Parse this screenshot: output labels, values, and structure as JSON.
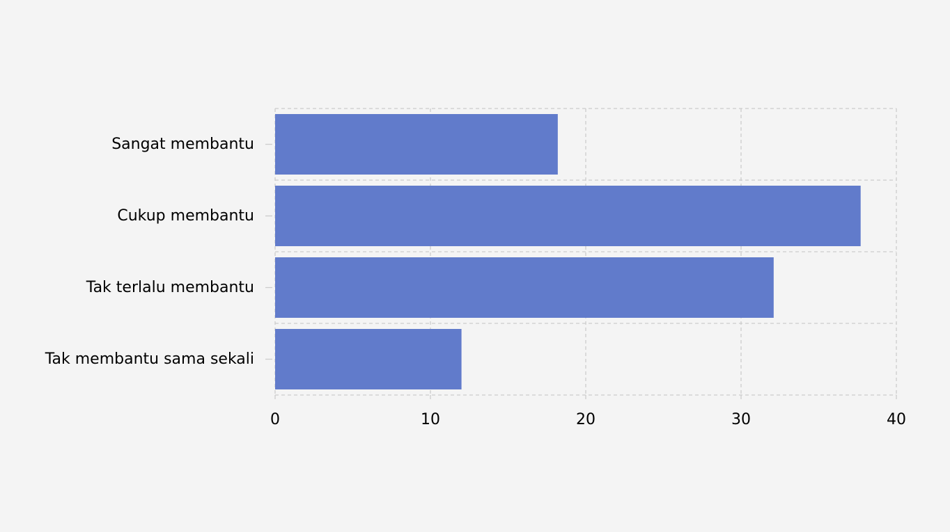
{
  "chart_data": {
    "type": "bar",
    "orientation": "horizontal",
    "title": "",
    "xlabel": "",
    "ylabel": "",
    "categories": [
      "Sangat membantu",
      "Cukup membantu",
      "Tak terlalu membantu",
      "Tak membantu sama sekali"
    ],
    "values": [
      18.2,
      37.7,
      32.1,
      12.0
    ],
    "xlim": [
      0,
      40
    ],
    "x_ticks": [
      "0",
      "10",
      "20",
      "30",
      "40"
    ],
    "grid": true,
    "bar_color": "#617bcb",
    "background_color": "#f4f4f4"
  }
}
